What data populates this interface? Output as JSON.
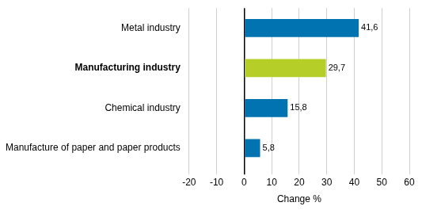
{
  "chart_data": {
    "type": "bar",
    "orientation": "horizontal",
    "categories": [
      "Metal industry",
      "Manufacturing industry",
      "Chemical industry",
      "Manufacture of paper and paper products"
    ],
    "values": [
      41.6,
      29.7,
      15.8,
      5.8
    ],
    "value_labels": [
      "41,6",
      "29,7",
      "15,8",
      "5,8"
    ],
    "colors": [
      "#0073b0",
      "#b5cf28",
      "#0073b0",
      "#0073b0"
    ],
    "xlabel": "Change %",
    "xlim": [
      -20,
      60
    ],
    "xticks": [
      -20,
      -10,
      0,
      10,
      20,
      30,
      40,
      50,
      60
    ],
    "grid": true,
    "data_labels": true
  }
}
